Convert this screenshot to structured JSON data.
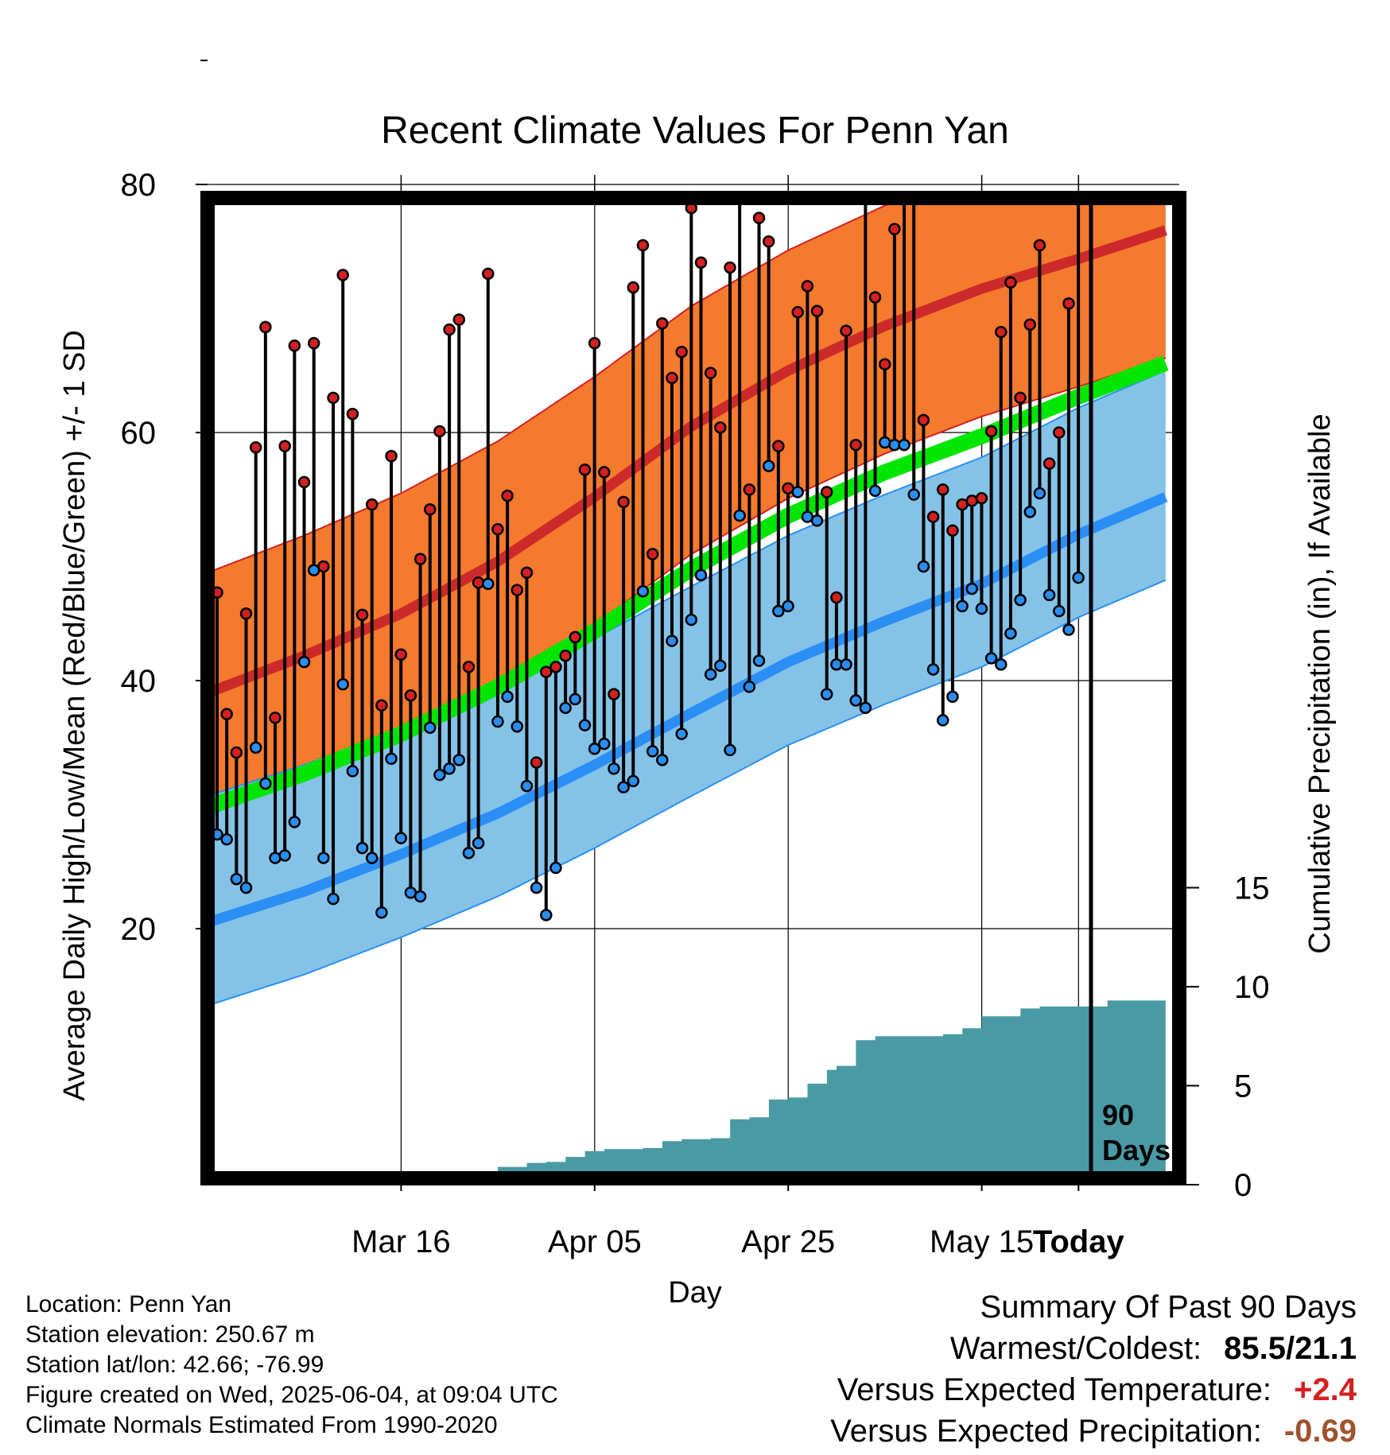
{
  "title": "Recent Climate Values For Penn Yan",
  "colors": {
    "high_band": "#f47a2e",
    "high_band_edge": "#d42020",
    "high_mean": "#cc2a2a",
    "low_band": "#85c2e7",
    "low_band_edge": "#2a90f0",
    "low_mean": "#2a8ef5",
    "mean_line": "#00e600",
    "precip": "#4a9aa5",
    "high_dot": "#d42020",
    "low_dot": "#2a8ef0"
  },
  "chart_data": {
    "type": "line",
    "title": "Recent Climate Values For Penn Yan",
    "xlabel": "Day",
    "ylabel": "Average Daily High/Low/Mean (Red/Blue/Green) +/- 1 SD",
    "y2label": "Cumulative Precipitation (in), If Available",
    "x_tick_labels": [
      "Mar 16",
      "Apr 05",
      "Apr 25",
      "May 15",
      "Today"
    ],
    "y_ticks": [
      20,
      40,
      60,
      80
    ],
    "ylim": [
      11.6,
      90.7
    ],
    "y2_ticks": [
      0,
      5,
      10,
      15
    ],
    "today_marker_label": "90\nDays",
    "x_days": [
      -90,
      -89,
      -88,
      -87,
      -86,
      -85,
      -84,
      -83,
      -82,
      -81,
      -80,
      -79,
      -78,
      -77,
      -76,
      -75,
      -74,
      -73,
      -72,
      -71,
      -70,
      -69,
      -68,
      -67,
      -66,
      -65,
      -64,
      -63,
      -62,
      -61,
      -60,
      -59,
      -58,
      -57,
      -56,
      -55,
      -54,
      -53,
      -52,
      -51,
      -50,
      -49,
      -48,
      -47,
      -46,
      -45,
      -44,
      -43,
      -42,
      -41,
      -40,
      -39,
      -38,
      -37,
      -36,
      -35,
      -34,
      -33,
      -32,
      -31,
      -30,
      -29,
      -28,
      -27,
      -26,
      -25,
      -24,
      -23,
      -22,
      -21,
      -20,
      -19,
      -18,
      -17,
      -16,
      -15,
      -14,
      -13,
      -12,
      -11,
      -10,
      -9,
      -8,
      -7,
      -6,
      -5,
      -4,
      -3,
      -2,
      -1
    ],
    "daily_high": [
      47.1,
      37.3,
      34.2,
      45.4,
      58.8,
      68.5,
      37.0,
      58.9,
      67.0,
      56.0,
      67.2,
      49.2,
      62.8,
      72.7,
      61.5,
      45.3,
      54.2,
      38.0,
      58.1,
      42.1,
      38.8,
      49.8,
      53.8,
      60.1,
      68.3,
      69.1,
      41.1,
      47.9,
      72.8,
      52.2,
      54.9,
      47.3,
      48.7,
      33.4,
      40.7,
      41.1,
      42.0,
      43.5,
      57.0,
      67.2,
      56.8,
      38.9,
      54.4,
      71.7,
      75.1,
      50.2,
      68.8,
      64.4,
      66.5,
      78.1,
      73.7,
      64.8,
      60.4,
      73.3,
      85.5,
      55.4,
      77.3,
      75.4,
      58.9,
      55.5,
      69.7,
      71.8,
      69.8,
      55.2,
      46.7,
      68.2,
      59.0,
      81.0,
      70.9,
      65.5,
      76.4,
      81.8,
      79.7,
      61.0,
      53.2,
      55.4,
      52.1,
      54.2,
      54.5,
      54.7,
      60.1,
      68.1,
      72.1,
      62.8,
      68.7,
      75.1,
      57.5,
      60.0,
      70.4,
      81.5
    ],
    "daily_low": [
      27.6,
      27.2,
      24.0,
      23.3,
      34.6,
      31.7,
      25.7,
      25.9,
      28.6,
      41.5,
      48.9,
      25.7,
      22.4,
      39.7,
      32.7,
      26.5,
      25.7,
      21.3,
      33.7,
      27.3,
      22.9,
      22.6,
      36.2,
      32.4,
      32.9,
      33.6,
      26.1,
      26.9,
      47.8,
      36.7,
      38.7,
      36.3,
      31.5,
      23.3,
      21.1,
      24.9,
      37.8,
      38.5,
      36.4,
      34.5,
      34.9,
      32.9,
      31.4,
      31.9,
      47.2,
      34.3,
      33.6,
      43.2,
      35.7,
      44.9,
      48.5,
      40.5,
      41.2,
      34.4,
      53.3,
      39.5,
      41.6,
      57.3,
      45.6,
      46.0,
      55.2,
      53.2,
      52.9,
      38.9,
      41.3,
      41.3,
      38.4,
      37.8,
      55.3,
      59.2,
      59.0,
      59.0,
      55.0,
      49.2,
      40.9,
      36.8,
      38.7,
      46.0,
      47.4,
      45.8,
      41.8,
      41.3,
      43.8,
      46.5,
      53.6,
      55.1,
      46.9,
      45.6,
      44.1,
      48.3
    ],
    "normal_high_mean": [
      {
        "x": -90,
        "y": 39.0
      },
      {
        "x": -80,
        "y": 42.0
      },
      {
        "x": -70,
        "y": 45.4
      },
      {
        "x": -60,
        "y": 49.6
      },
      {
        "x": -50,
        "y": 54.8
      },
      {
        "x": -40,
        "y": 60.5
      },
      {
        "x": -30,
        "y": 65.0
      },
      {
        "x": -20,
        "y": 68.6
      },
      {
        "x": -10,
        "y": 71.6
      },
      {
        "x": 0,
        "y": 74.0
      },
      {
        "x": 9,
        "y": 76.3
      }
    ],
    "normal_high_sd": 10.3,
    "normal_high_upper_offset": 9.7,
    "normal_low_mean": [
      {
        "x": -90,
        "y": 20.5
      },
      {
        "x": -80,
        "y": 23.0
      },
      {
        "x": -70,
        "y": 26.0
      },
      {
        "x": -60,
        "y": 29.3
      },
      {
        "x": -50,
        "y": 33.2
      },
      {
        "x": -40,
        "y": 37.4
      },
      {
        "x": -30,
        "y": 41.5
      },
      {
        "x": -20,
        "y": 44.8
      },
      {
        "x": -10,
        "y": 47.8
      },
      {
        "x": 0,
        "y": 51.8
      },
      {
        "x": 9,
        "y": 54.8
      }
    ],
    "normal_low_sd": 6.7,
    "normal_mean_line": [
      {
        "x": -90,
        "y": 29.8
      },
      {
        "x": -80,
        "y": 32.5
      },
      {
        "x": -70,
        "y": 35.7
      },
      {
        "x": -60,
        "y": 39.5
      },
      {
        "x": -50,
        "y": 44.0
      },
      {
        "x": -40,
        "y": 49.0
      },
      {
        "x": -30,
        "y": 53.3
      },
      {
        "x": -20,
        "y": 56.8
      },
      {
        "x": -10,
        "y": 59.7
      },
      {
        "x": 0,
        "y": 62.9
      },
      {
        "x": 9,
        "y": 65.6
      }
    ],
    "cumulative_precip": [
      {
        "x": -90,
        "y": 0.0
      },
      {
        "x": -70,
        "y": 0.0
      },
      {
        "x": -68,
        "y": 0.2
      },
      {
        "x": -65,
        "y": 0.25
      },
      {
        "x": -63,
        "y": 0.6
      },
      {
        "x": -60,
        "y": 0.9
      },
      {
        "x": -57,
        "y": 1.1
      },
      {
        "x": -55,
        "y": 1.15
      },
      {
        "x": -53,
        "y": 1.4
      },
      {
        "x": -51,
        "y": 1.7
      },
      {
        "x": -49,
        "y": 1.8
      },
      {
        "x": -45,
        "y": 1.85
      },
      {
        "x": -43,
        "y": 2.2
      },
      {
        "x": -41,
        "y": 2.3
      },
      {
        "x": -38,
        "y": 2.35
      },
      {
        "x": -36,
        "y": 3.3
      },
      {
        "x": -34,
        "y": 3.4
      },
      {
        "x": -32,
        "y": 4.3
      },
      {
        "x": -30,
        "y": 4.4
      },
      {
        "x": -28,
        "y": 5.1
      },
      {
        "x": -26,
        "y": 5.8
      },
      {
        "x": -25,
        "y": 6.0
      },
      {
        "x": -23,
        "y": 7.3
      },
      {
        "x": -21,
        "y": 7.5
      },
      {
        "x": -14,
        "y": 7.6
      },
      {
        "x": -12,
        "y": 7.9
      },
      {
        "x": -10,
        "y": 8.5
      },
      {
        "x": -8,
        "y": 8.5
      },
      {
        "x": -6,
        "y": 8.9
      },
      {
        "x": -4,
        "y": 9.0
      },
      {
        "x": -2,
        "y": 9.0
      },
      {
        "x": -1,
        "y": 9.0
      },
      {
        "x": 1,
        "y": 9.0
      },
      {
        "x": 3,
        "y": 9.3
      },
      {
        "x": 9,
        "y": 9.3
      }
    ]
  },
  "info": {
    "location": "Location: Penn Yan",
    "elevation": "Station elevation: 250.67 m",
    "latlon": "Station lat/lon: 42.66; -76.99",
    "created": "Figure created on Wed, 2025-06-04, at 09:04 UTC",
    "normals": "Climate Normals Estimated From 1990-2020"
  },
  "summary": {
    "heading": "Summary Of Past 90 Days",
    "warmest_label": "Warmest/Coldest:",
    "warmest_value": "85.5/21.1",
    "temp_label": "Versus Expected Temperature:",
    "temp_value": "+2.4",
    "temp_color": "#d42020",
    "precip_label": "Versus Expected Precipitation:",
    "precip_value": "-0.69",
    "precip_color": "#a0522d"
  }
}
